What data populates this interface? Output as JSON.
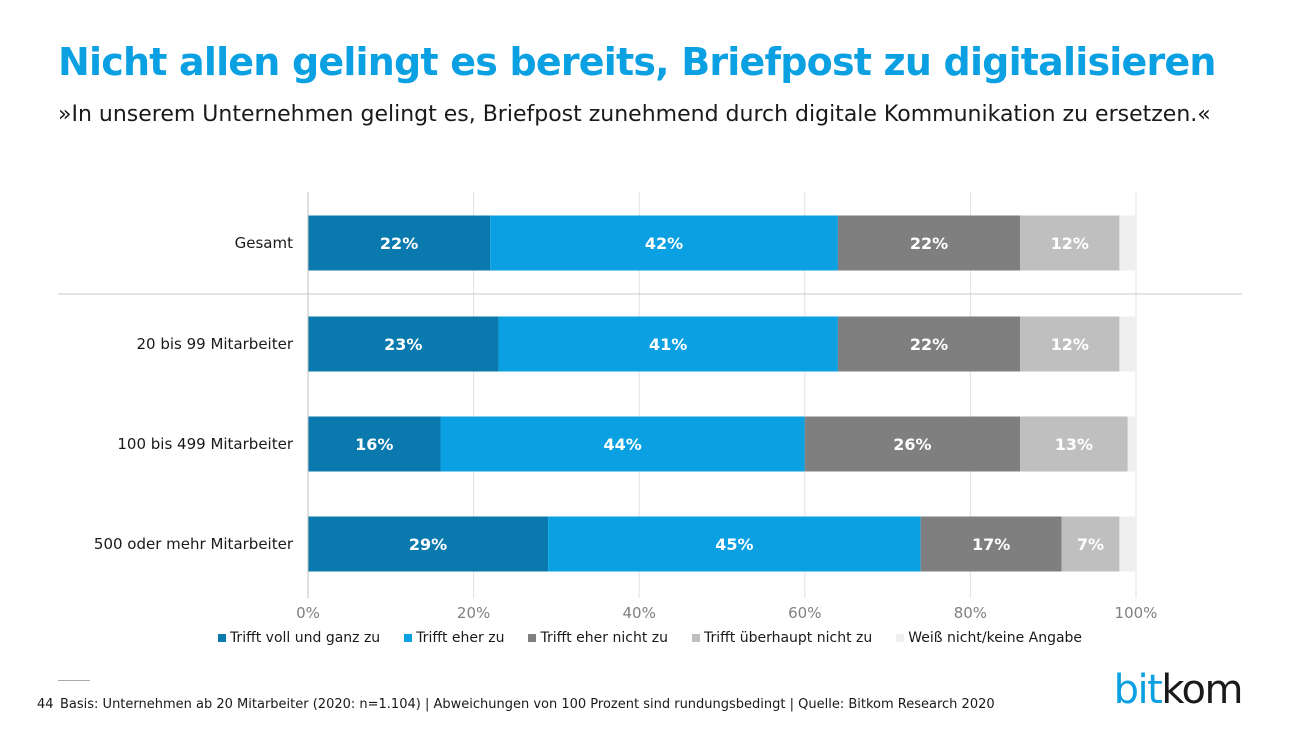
{
  "header": {
    "title": "Nicht allen gelingt es bereits, Briefpost zu digitalisieren",
    "subtitle": "»In unserem Unternehmen gelingt es, Briefpost zunehmend durch digitale Kommunikation zu ersetzen.«"
  },
  "chart_data": {
    "type": "bar",
    "orientation": "horizontal",
    "stacked": true,
    "categories": [
      "Gesamt",
      "20 bis 99 Mitarbeiter",
      "100 bis 499 Mitarbeiter",
      "500 oder mehr Mitarbeiter"
    ],
    "series": [
      {
        "name": "Trifft voll und ganz zu",
        "values": [
          22,
          23,
          16,
          29
        ],
        "labels": [
          "22%",
          "23%",
          "16%",
          "29%"
        ],
        "color": "#0a79ae"
      },
      {
        "name": "Trifft eher zu",
        "values": [
          42,
          41,
          44,
          45
        ],
        "labels": [
          "42%",
          "41%",
          "44%",
          "45%"
        ],
        "color": "#0aa0e1"
      },
      {
        "name": "Trifft eher nicht zu",
        "values": [
          22,
          22,
          26,
          17
        ],
        "labels": [
          "22%",
          "22%",
          "26%",
          "17%"
        ],
        "color": "#7f7f7f"
      },
      {
        "name": "Trifft überhaupt nicht zu",
        "values": [
          12,
          12,
          13,
          7
        ],
        "labels": [
          "12%",
          "12%",
          "13%",
          "7%"
        ],
        "color": "#bfbfbf"
      },
      {
        "name": "Weiß nicht/keine Angabe",
        "values": [
          2,
          2,
          1,
          2
        ],
        "labels": [
          "",
          "",
          "",
          ""
        ],
        "color": "#efefef"
      }
    ],
    "xlim": [
      0,
      100
    ],
    "xticks": [
      0,
      20,
      40,
      60,
      80,
      100
    ],
    "xtick_labels": [
      "0%",
      "20%",
      "40%",
      "60%",
      "80%",
      "100%"
    ],
    "grid": "vertical",
    "legend_position": "bottom"
  },
  "footer": {
    "page_number": "44",
    "note": "Basis: Unternehmen ab 20 Mitarbeiter (2020: n=1.104) | Abweichungen von 100 Prozent sind rundungsbedingt | Quelle: Bitkom Research 2020"
  },
  "logo": {
    "part1": "bit",
    "part2": "kom"
  }
}
